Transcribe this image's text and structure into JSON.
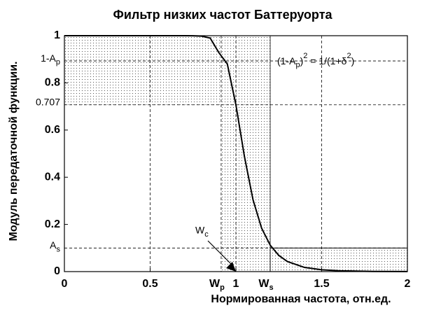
{
  "chart_data": {
    "type": "line",
    "title": "Фильтр низких частот Баттеруорта",
    "xlabel": "Нормированная частота,  отн.ед.",
    "ylabel": "Модуль передаточной функции.",
    "x": [
      0,
      0.1,
      0.2,
      0.3,
      0.4,
      0.5,
      0.6,
      0.7,
      0.75,
      0.8,
      0.85,
      0.9,
      0.95,
      1,
      1.05,
      1.1,
      1.15,
      1.2,
      1.25,
      1.3,
      1.4,
      1.5,
      1.6,
      1.8,
      2
    ],
    "series": [
      {
        "color": "#000000",
        "values": [
          1,
          1,
          1,
          1,
          1,
          1,
          1,
          1,
          0.9995,
          0.998,
          0.99,
          0.929,
          0.88,
          0.707,
          0.487,
          0.304,
          0.184,
          0.112,
          0.0687,
          0.0429,
          0.0177,
          0.0077,
          0.0036,
          0.0008,
          0.0002
        ]
      }
    ],
    "xlim": [
      0,
      2
    ],
    "ylim": [
      0,
      1
    ],
    "xticks": [
      0,
      0.5,
      1,
      1.5,
      2
    ],
    "yticks": [
      0,
      0.2,
      0.4,
      0.6,
      0.8,
      1
    ],
    "grid_x": true,
    "x_markers": [
      {
        "value": 0.914,
        "label": "W",
        "sub": "p"
      },
      {
        "value": 1.2,
        "label": "W",
        "sub": "s"
      }
    ],
    "y_markers": [
      {
        "value": 0.893,
        "label": "1-A",
        "sub": "p"
      },
      {
        "value": 0.707,
        "label": "0.707"
      },
      {
        "value": 0.1,
        "label": "A",
        "sub": "s"
      }
    ],
    "cutoff": {
      "x": 1,
      "y": 0,
      "label": "W",
      "sub": "c"
    },
    "equation": [
      "(1-A",
      "p",
      ")",
      "2",
      " = 1/(1+",
      "δ",
      "2",
      ")"
    ]
  }
}
